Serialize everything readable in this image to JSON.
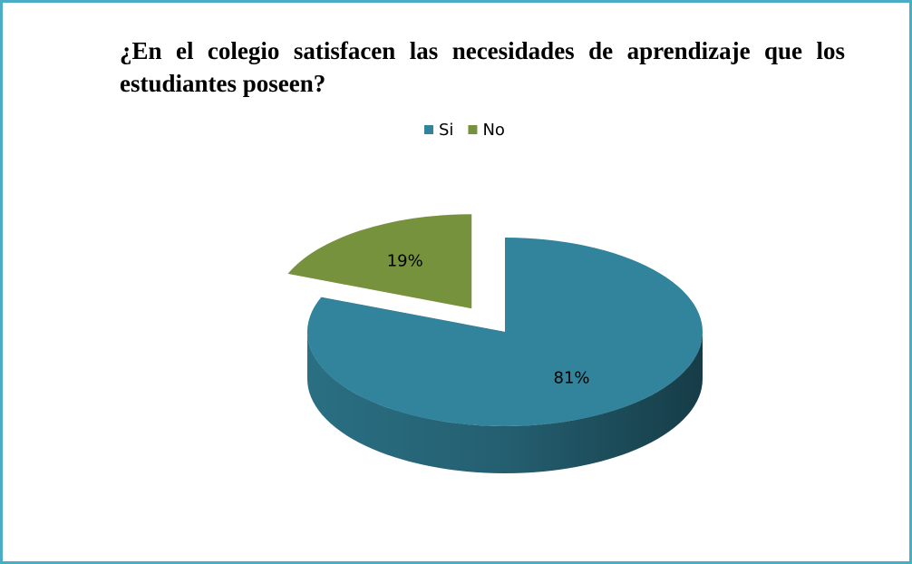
{
  "chart_data": {
    "type": "pie",
    "title": "¿En el colegio satisfacen las necesidades de aprendizaje que los estudiantes poseen?",
    "categories": [
      "Si",
      "No"
    ],
    "values": [
      81,
      19
    ],
    "value_labels": [
      "81%",
      "19%"
    ],
    "colors": [
      "#31849b",
      "#76923c"
    ],
    "legend": "top"
  }
}
